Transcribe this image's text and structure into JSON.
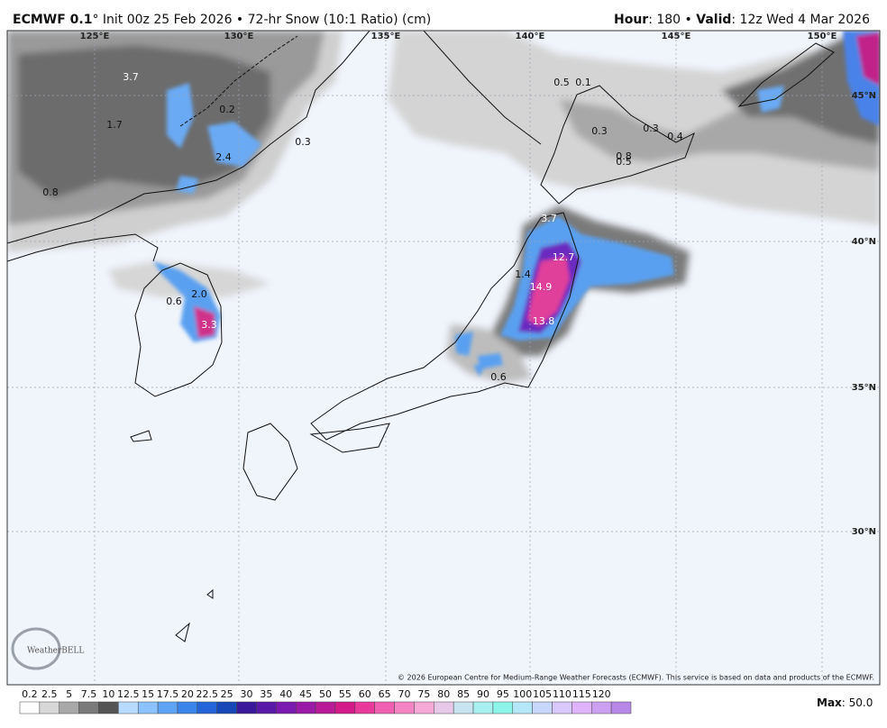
{
  "header": {
    "model": "ECMWF 0.1",
    "title_rest": "° Init 00z 25 Feb 2026 • 72-hr Snow (10:1 Ratio) (cm)",
    "hour_label": "Hour",
    "hour_text": ": 180 • ",
    "valid_label": "Valid",
    "valid_text": ": 12z Wed 4 Mar 2026"
  },
  "map": {
    "longitude_labels": [
      "125°E",
      "130°E",
      "135°E",
      "140°E",
      "145°E",
      "150°E"
    ],
    "latitude_labels": [
      "45°N",
      "40°N",
      "35°N",
      "30°N"
    ],
    "snow_labels": [
      "3.7",
      "1.7",
      "0.8",
      "0.2",
      "2.4",
      "0.3",
      "0.6",
      "2.0",
      "3.3",
      "0.5",
      "0.1",
      "0.3",
      "0.3",
      "0.4",
      "0.8",
      "0.5",
      "3.7",
      "12.7",
      "14.9",
      "1.4",
      "13.8",
      "0.6"
    ],
    "logo": "WeatherBELL",
    "copyright": "© 2026 European Centre for Medium-Range Weather Forecasts (ECMWF). This service is based on data and products of the ECMWF."
  },
  "colorbar": {
    "labels": [
      "0.2",
      "2.5",
      "5",
      "7.5",
      "10",
      "12.5",
      "15",
      "17.5",
      "20",
      "22.5",
      "25",
      "30",
      "35",
      "40",
      "45",
      "50",
      "55",
      "60",
      "65",
      "70",
      "75",
      "80",
      "85",
      "90",
      "95",
      "100",
      "105",
      "110",
      "115",
      "120"
    ],
    "max_label": "Max",
    "max_text": ": 50.0"
  }
}
